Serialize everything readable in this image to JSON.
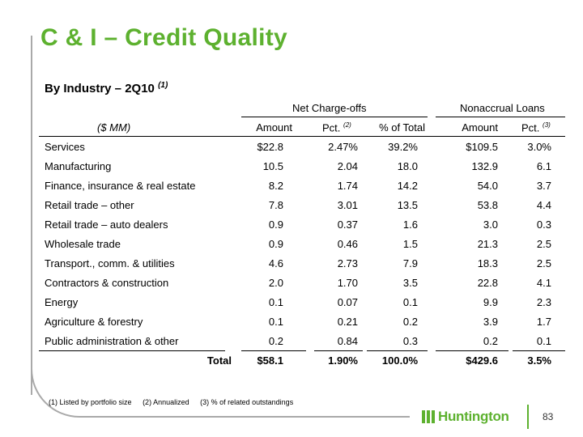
{
  "slide": {
    "title": "C & I – Credit Quality",
    "subtitle": "By Industry – 2Q10",
    "subtitle_note": "(1)",
    "page_number": "83",
    "logo_text": "Huntington",
    "accent_color": "#5db12f"
  },
  "table": {
    "group_headers": {
      "ncos": "Net Charge-offs",
      "nal": "Nonaccrual Loans"
    },
    "units_label": "($ MM)",
    "col_headers": {
      "nco_amount": "Amount",
      "nco_pct": "Pct.",
      "nco_pct_note": "(2)",
      "nco_share": "% of Total",
      "nal_amount": "Amount",
      "nal_pct": "Pct.",
      "nal_pct_note": "(3)"
    },
    "rows": [
      {
        "industry": "Services",
        "nco_amount": "$22.8",
        "nco_pct": "2.47%",
        "nco_share": "39.2%",
        "nal_amount": "$109.5",
        "nal_pct": "3.0%"
      },
      {
        "industry": "Manufacturing",
        "nco_amount": "10.5",
        "nco_pct": "2.04",
        "nco_share": "18.0",
        "nal_amount": "132.9",
        "nal_pct": "6.1"
      },
      {
        "industry": "Finance, insurance & real estate",
        "nco_amount": "8.2",
        "nco_pct": "1.74",
        "nco_share": "14.2",
        "nal_amount": "54.0",
        "nal_pct": "3.7"
      },
      {
        "industry": "Retail trade – other",
        "nco_amount": "7.8",
        "nco_pct": "3.01",
        "nco_share": "13.5",
        "nal_amount": "53.8",
        "nal_pct": "4.4"
      },
      {
        "industry": "Retail trade – auto dealers",
        "nco_amount": "0.9",
        "nco_pct": "0.37",
        "nco_share": "1.6",
        "nal_amount": "3.0",
        "nal_pct": "0.3"
      },
      {
        "industry": "Wholesale trade",
        "nco_amount": "0.9",
        "nco_pct": "0.46",
        "nco_share": "1.5",
        "nal_amount": "21.3",
        "nal_pct": "2.5"
      },
      {
        "industry": "Transport., comm. & utilities",
        "nco_amount": "4.6",
        "nco_pct": "2.73",
        "nco_share": "7.9",
        "nal_amount": "18.3",
        "nal_pct": "2.5"
      },
      {
        "industry": "Contractors & construction",
        "nco_amount": "2.0",
        "nco_pct": "1.70",
        "nco_share": "3.5",
        "nal_amount": "22.8",
        "nal_pct": "4.1"
      },
      {
        "industry": "Energy",
        "nco_amount": "0.1",
        "nco_pct": "0.07",
        "nco_share": "0.1",
        "nal_amount": "9.9",
        "nal_pct": "2.3"
      },
      {
        "industry": "Agriculture & forestry",
        "nco_amount": "0.1",
        "nco_pct": "0.21",
        "nco_share": "0.2",
        "nal_amount": "3.9",
        "nal_pct": "1.7"
      },
      {
        "industry": "Public administration & other",
        "nco_amount": "0.2",
        "nco_pct": "0.84",
        "nco_share": "0.3",
        "nal_amount": "0.2",
        "nal_pct": "0.1"
      }
    ],
    "total": {
      "label": "Total",
      "nco_amount": "$58.1",
      "nco_pct": "1.90%",
      "nco_share": "100.0%",
      "nal_amount": "$429.6",
      "nal_pct": "3.5%"
    }
  },
  "footnotes": [
    "(1)  Listed by portfolio size",
    "(2)  Annualized",
    "(3)  % of related outstandings"
  ]
}
